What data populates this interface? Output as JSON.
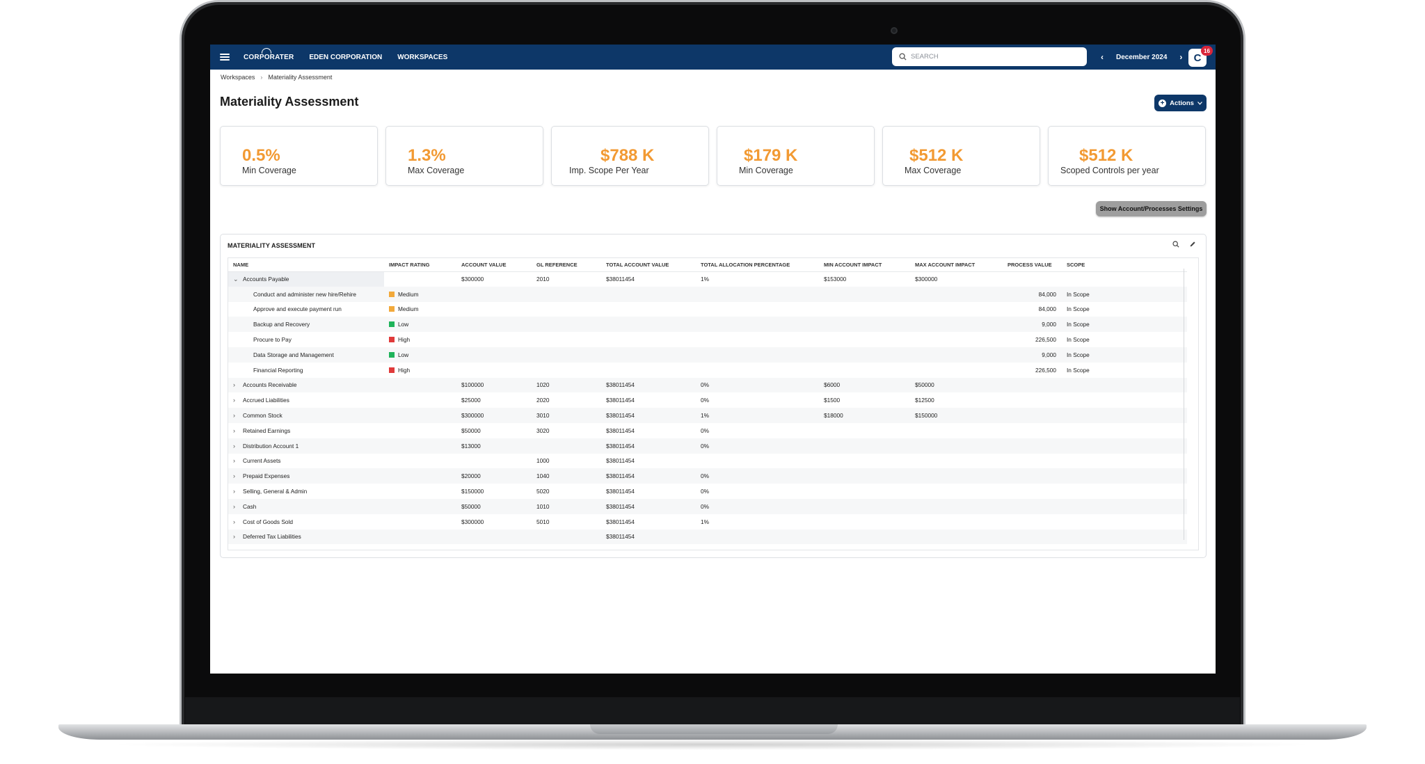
{
  "app": {
    "logo": "CORPORATER",
    "nav": [
      "EDEN CORPORATION",
      "WORKSPACES"
    ],
    "search_placeholder": "SEARCH",
    "period": "December 2024",
    "avatar_initial": "C",
    "notification_count": "16"
  },
  "breadcrumb": [
    "Workspaces",
    "Materiality Assessment"
  ],
  "page": {
    "title": "Materiality Assessment",
    "actions_label": "Actions",
    "show_settings_label": "Show Account/Processes Settings"
  },
  "kpis": [
    {
      "value": "0.5%",
      "label": "Min Coverage"
    },
    {
      "value": "1.3%",
      "label": "Max Coverage"
    },
    {
      "value": "$788 K",
      "label": "Imp. Scope Per Year"
    },
    {
      "value": "$179 K",
      "label": "Min Coverage"
    },
    {
      "value": "$512 K",
      "label": "Max Coverage"
    },
    {
      "value": "$512 K",
      "label": "Scoped Controls per year"
    }
  ],
  "table": {
    "title": "MATERIALITY ASSESSMENT",
    "columns": [
      "NAME",
      "IMPACT RATING",
      "ACCOUNT VALUE",
      "GL REFERENCE",
      "TOTAL ACCOUNT VALUE",
      "TOTAL ALLOCATION PERCENTAGE",
      "MIN ACCOUNT IMPACT",
      "MAX ACCOUNT IMPACT",
      "PROCESS VALUE",
      "SCOPE"
    ],
    "colors": {
      "Medium": "#f2a93b",
      "Low": "#1fb35a",
      "High": "#e03a3a"
    },
    "rows": [
      {
        "level": 0,
        "expanded": true,
        "name": "Accounts Payable",
        "rating": "",
        "account_value": "$300000",
        "gl": "2010",
        "total": "$38011454",
        "pct": "1%",
        "min": "$153000",
        "max": "$300000",
        "process": "",
        "scope": ""
      },
      {
        "level": 1,
        "name": "Conduct and administer new hire/Rehire",
        "rating": "Medium",
        "account_value": "",
        "gl": "",
        "total": "",
        "pct": "",
        "min": "",
        "max": "",
        "process": "84,000",
        "scope": "In Scope"
      },
      {
        "level": 1,
        "name": "Approve and execute payment run",
        "rating": "Medium",
        "account_value": "",
        "gl": "",
        "total": "",
        "pct": "",
        "min": "",
        "max": "",
        "process": "84,000",
        "scope": "In Scope"
      },
      {
        "level": 1,
        "name": "Backup and Recovery",
        "rating": "Low",
        "account_value": "",
        "gl": "",
        "total": "",
        "pct": "",
        "min": "",
        "max": "",
        "process": "9,000",
        "scope": "In Scope"
      },
      {
        "level": 1,
        "name": "Procure to Pay",
        "rating": "High",
        "account_value": "",
        "gl": "",
        "total": "",
        "pct": "",
        "min": "",
        "max": "",
        "process": "226,500",
        "scope": "In Scope"
      },
      {
        "level": 1,
        "name": "Data Storage and Management",
        "rating": "Low",
        "account_value": "",
        "gl": "",
        "total": "",
        "pct": "",
        "min": "",
        "max": "",
        "process": "9,000",
        "scope": "In Scope"
      },
      {
        "level": 1,
        "name": "Financial Reporting",
        "rating": "High",
        "account_value": "",
        "gl": "",
        "total": "",
        "pct": "",
        "min": "",
        "max": "",
        "process": "226,500",
        "scope": "In Scope"
      },
      {
        "level": 0,
        "expanded": false,
        "name": "Accounts Receivable",
        "rating": "",
        "account_value": "$100000",
        "gl": "1020",
        "total": "$38011454",
        "pct": "0%",
        "min": "$6000",
        "max": "$50000",
        "process": "",
        "scope": ""
      },
      {
        "level": 0,
        "expanded": false,
        "name": "Accrued Liabilities",
        "rating": "",
        "account_value": "$25000",
        "gl": "2020",
        "total": "$38011454",
        "pct": "0%",
        "min": "$1500",
        "max": "$12500",
        "process": "",
        "scope": ""
      },
      {
        "level": 0,
        "expanded": false,
        "name": "Common Stock",
        "rating": "",
        "account_value": "$300000",
        "gl": "3010",
        "total": "$38011454",
        "pct": "1%",
        "min": "$18000",
        "max": "$150000",
        "process": "",
        "scope": ""
      },
      {
        "level": 0,
        "expanded": false,
        "name": "Retained Earnings",
        "rating": "",
        "account_value": "$50000",
        "gl": "3020",
        "total": "$38011454",
        "pct": "0%",
        "min": "",
        "max": "",
        "process": "",
        "scope": ""
      },
      {
        "level": 0,
        "expanded": false,
        "name": "Distribution Account 1",
        "rating": "",
        "account_value": "$13000",
        "gl": "",
        "total": "$38011454",
        "pct": "0%",
        "min": "",
        "max": "",
        "process": "",
        "scope": ""
      },
      {
        "level": 0,
        "expanded": false,
        "name": "Current Assets",
        "rating": "",
        "account_value": "",
        "gl": "1000",
        "total": "$38011454",
        "pct": "",
        "min": "",
        "max": "",
        "process": "",
        "scope": ""
      },
      {
        "level": 0,
        "expanded": false,
        "name": "Prepaid Expenses",
        "rating": "",
        "account_value": "$20000",
        "gl": "1040",
        "total": "$38011454",
        "pct": "0%",
        "min": "",
        "max": "",
        "process": "",
        "scope": ""
      },
      {
        "level": 0,
        "expanded": false,
        "name": "Selling, General & Admin",
        "rating": "",
        "account_value": "$150000",
        "gl": "5020",
        "total": "$38011454",
        "pct": "0%",
        "min": "",
        "max": "",
        "process": "",
        "scope": ""
      },
      {
        "level": 0,
        "expanded": false,
        "name": "Cash",
        "rating": "",
        "account_value": "$50000",
        "gl": "1010",
        "total": "$38011454",
        "pct": "0%",
        "min": "",
        "max": "",
        "process": "",
        "scope": ""
      },
      {
        "level": 0,
        "expanded": false,
        "name": "Cost of Goods Sold",
        "rating": "",
        "account_value": "$300000",
        "gl": "5010",
        "total": "$38011454",
        "pct": "1%",
        "min": "",
        "max": "",
        "process": "",
        "scope": ""
      },
      {
        "level": 0,
        "expanded": false,
        "name": "Deferred Tax Liabilities",
        "rating": "",
        "account_value": "",
        "gl": "",
        "total": "$38011454",
        "pct": "",
        "min": "",
        "max": "",
        "process": "",
        "scope": ""
      }
    ]
  }
}
